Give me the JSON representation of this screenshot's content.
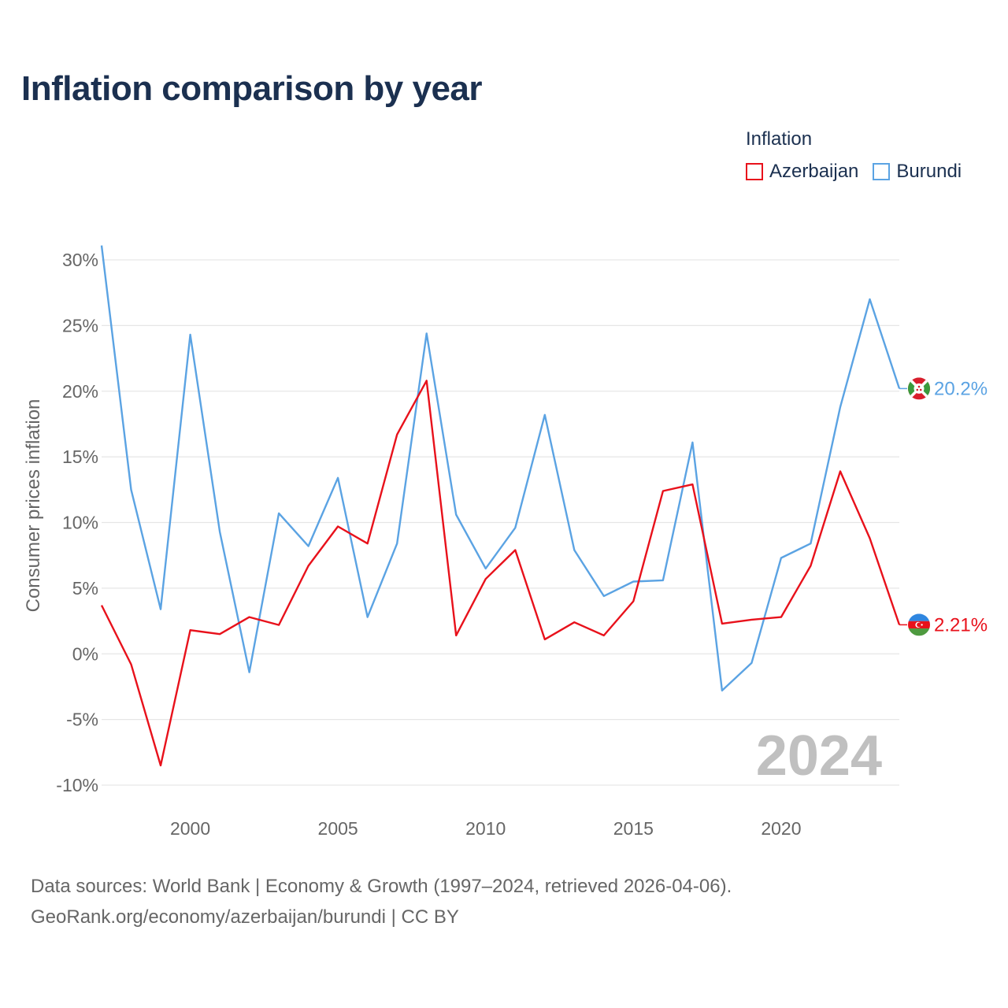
{
  "title": "Inflation comparison by year",
  "legend": {
    "title": "Inflation",
    "items": [
      {
        "label": "Azerbaijan",
        "color": "#e8111b"
      },
      {
        "label": "Burundi",
        "color": "#5ba3e3"
      }
    ]
  },
  "year_watermark": "2024",
  "source": {
    "line1": "Data sources: World Bank | Economy & Growth (1997–2024, retrieved 2026-04-06).",
    "line2": "GeoRank.org/economy/azerbaijan/burundi | CC BY"
  },
  "chart_data": {
    "type": "line",
    "title": "Inflation comparison by year",
    "ylabel": "Consumer prices inflation",
    "xlabel": "",
    "xlim": [
      1997,
      2024
    ],
    "ylim": [
      -10,
      30
    ],
    "yticks": [
      -10,
      -5,
      0,
      5,
      10,
      15,
      20,
      25,
      30
    ],
    "ytick_labels": [
      "-10%",
      "-5%",
      "0%",
      "5%",
      "10%",
      "15%",
      "20%",
      "25%",
      "30%"
    ],
    "xticks": [
      2000,
      2005,
      2010,
      2015,
      2020
    ],
    "xtick_labels": [
      "2000",
      "2005",
      "2010",
      "2015",
      "2020"
    ],
    "x": [
      1997,
      1998,
      1999,
      2000,
      2001,
      2002,
      2003,
      2004,
      2005,
      2006,
      2007,
      2008,
      2009,
      2010,
      2011,
      2012,
      2013,
      2014,
      2015,
      2016,
      2017,
      2018,
      2019,
      2020,
      2021,
      2022,
      2023,
      2024
    ],
    "series": [
      {
        "name": "Azerbaijan",
        "color": "#e8111b",
        "end_label": "2.21%",
        "values": [
          3.7,
          -0.8,
          -8.5,
          1.8,
          1.5,
          2.8,
          2.2,
          6.7,
          9.7,
          8.4,
          16.7,
          20.8,
          1.4,
          5.7,
          7.9,
          1.1,
          2.4,
          1.4,
          4.0,
          12.4,
          12.9,
          2.3,
          2.6,
          2.8,
          6.7,
          13.9,
          8.8,
          2.21
        ]
      },
      {
        "name": "Burundi",
        "color": "#5ba3e3",
        "end_label": "20.2%",
        "values": [
          31.1,
          12.5,
          3.4,
          24.3,
          9.3,
          -1.4,
          10.7,
          8.2,
          13.4,
          2.8,
          8.4,
          24.4,
          10.6,
          6.5,
          9.6,
          18.2,
          7.9,
          4.4,
          5.5,
          5.6,
          16.1,
          -2.8,
          -0.7,
          7.3,
          8.4,
          18.8,
          27.0,
          20.2
        ]
      }
    ]
  }
}
